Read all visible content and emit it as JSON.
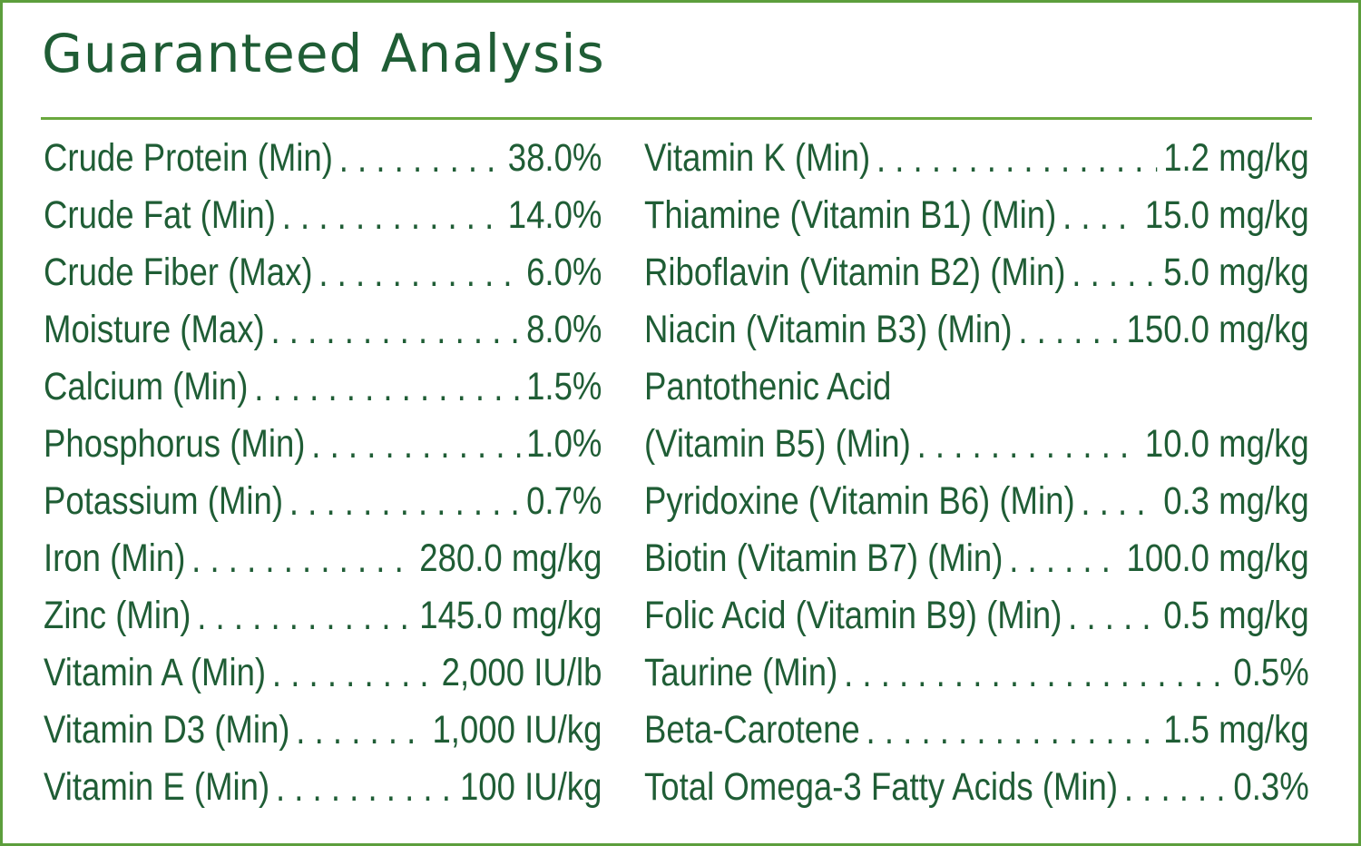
{
  "title": "Guaranteed Analysis",
  "columns": [
    {
      "rows": [
        {
          "label": "Crude Protein (Min)",
          "value": "38.0%"
        },
        {
          "label": "Crude Fat (Min)",
          "value": "14.0%"
        },
        {
          "label": "Crude Fiber (Max)",
          "value": "6.0%"
        },
        {
          "label": "Moisture (Max)",
          "value": "8.0%"
        },
        {
          "label": "Calcium (Min)",
          "value": "1.5%"
        },
        {
          "label": "Phosphorus (Min)",
          "value": "1.0%"
        },
        {
          "label": "Potassium (Min)",
          "value": "0.7%"
        },
        {
          "label": "Iron (Min)",
          "value": "280.0 mg/kg"
        },
        {
          "label": "Zinc (Min)",
          "value": "145.0 mg/kg"
        },
        {
          "label": "Vitamin A (Min)",
          "value": "2,000 IU/lb"
        },
        {
          "label": "Vitamin D3 (Min)",
          "value": "1,000 IU/kg"
        },
        {
          "label": "Vitamin E (Min)",
          "value": "100 IU/kg"
        }
      ]
    },
    {
      "rows": [
        {
          "label": "Vitamin K (Min)",
          "value": "1.2 mg/kg"
        },
        {
          "label": "Thiamine (Vitamin B1) (Min)",
          "value": "15.0 mg/kg"
        },
        {
          "label": "Riboflavin (Vitamin B2) (Min)",
          "value": "5.0 mg/kg"
        },
        {
          "label": "Niacin (Vitamin B3) (Min)",
          "value": "150.0 mg/kg"
        },
        {
          "label": "Pantothenic Acid"
        },
        {
          "label": "(Vitamin B5) (Min)",
          "value": "10.0 mg/kg"
        },
        {
          "label": "Pyridoxine (Vitamin B6) (Min)",
          "value": "0.3 mg/kg"
        },
        {
          "label": "Biotin (Vitamin B7) (Min)",
          "value": "100.0 mg/kg"
        },
        {
          "label": "Folic Acid (Vitamin B9) (Min)",
          "value": "0.5 mg/kg"
        },
        {
          "label": "Taurine (Min)",
          "value": "0.5%"
        },
        {
          "label": "Beta-Carotene",
          "value": "1.5 mg/kg"
        },
        {
          "label": "Total Omega-3 Fatty Acids (Min)",
          "value": "0.3%"
        }
      ]
    }
  ]
}
